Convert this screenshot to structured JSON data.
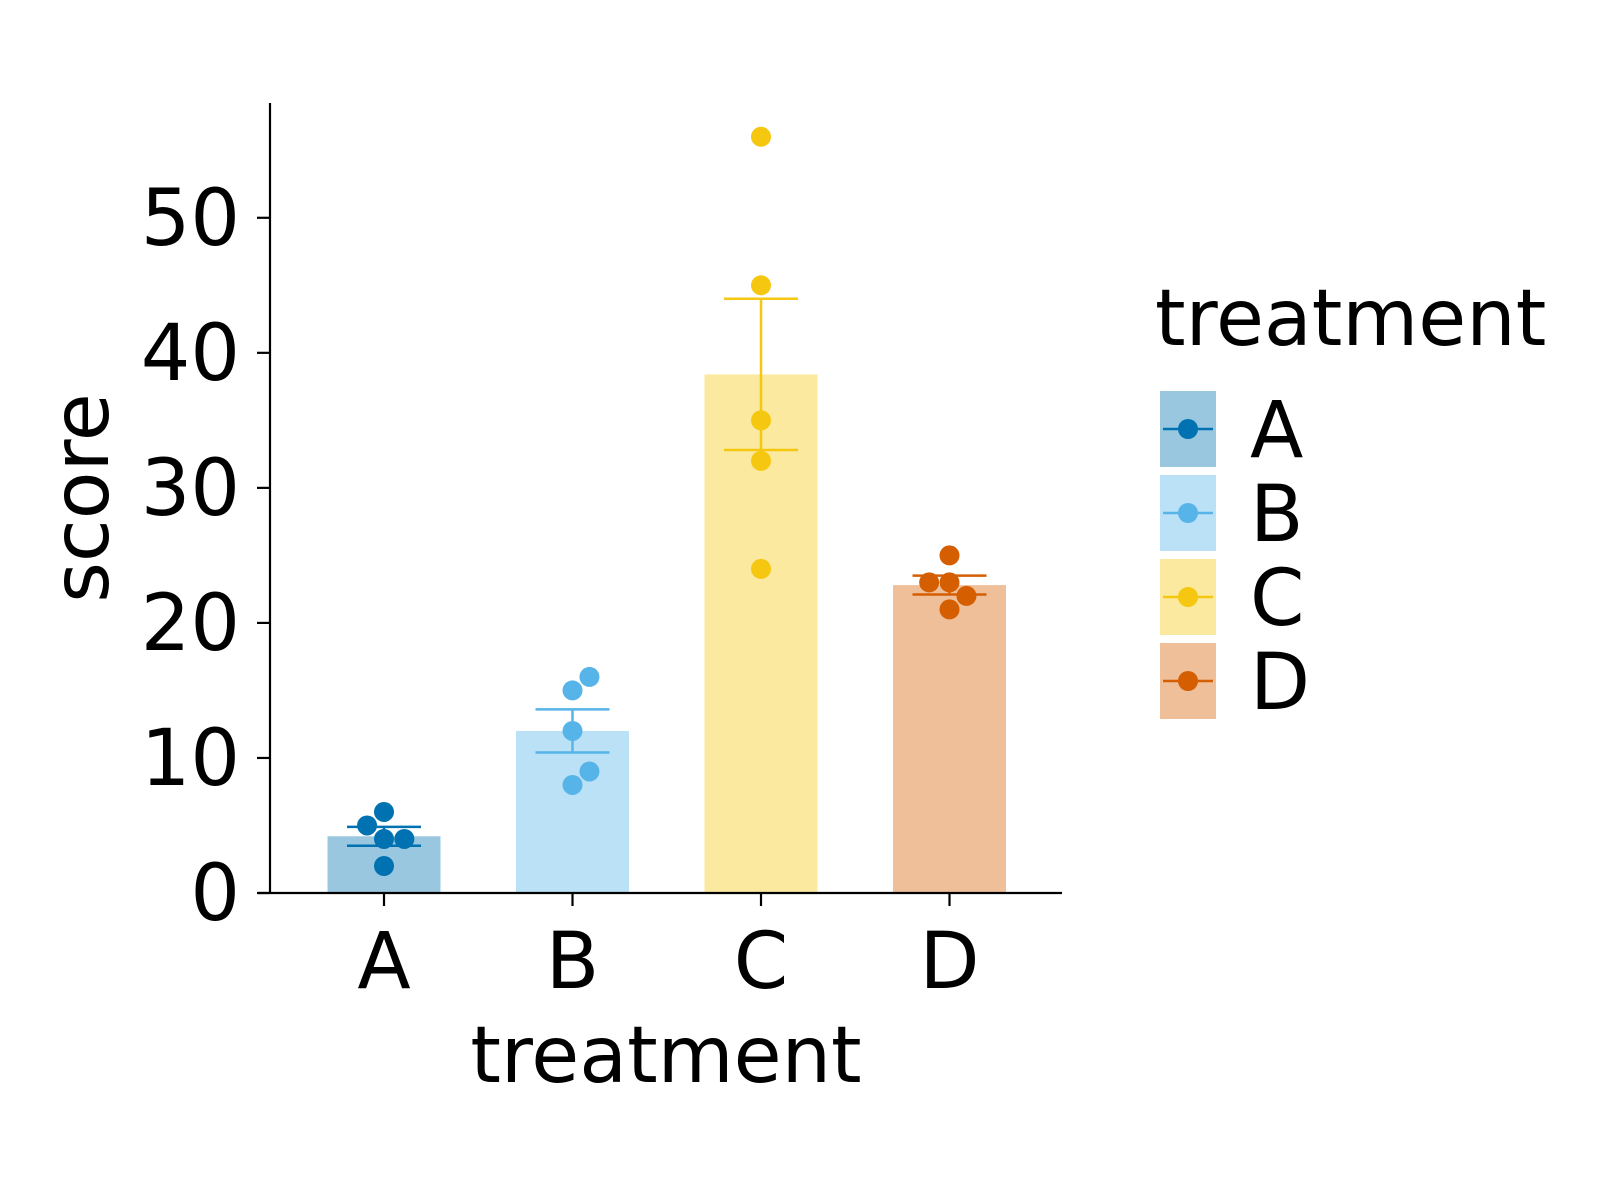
{
  "chart_data": {
    "type": "bar",
    "title": "",
    "xlabel": "treatment",
    "ylabel": "score",
    "ylim": [
      0,
      58.5
    ],
    "yticks": [
      0,
      10,
      20,
      30,
      40,
      50
    ],
    "grid": false,
    "legend": {
      "title": "treatment",
      "position": "right"
    },
    "categories": [
      "A",
      "B",
      "C",
      "D"
    ],
    "colors": {
      "A": "#0072B2",
      "B": "#56B4E9",
      "C": "#F5C710",
      "D": "#D55E00"
    },
    "series": [
      {
        "name": "A",
        "mean": 4.2,
        "error": [
          3.5,
          4.9
        ],
        "points": [
          {
            "offset": -0.1,
            "value": 5
          },
          {
            "offset": 0.0,
            "value": 6
          },
          {
            "offset": 0.0,
            "value": 4
          },
          {
            "offset": 0.12,
            "value": 4
          },
          {
            "offset": 0.0,
            "value": 2
          }
        ]
      },
      {
        "name": "B",
        "mean": 12.0,
        "error": [
          10.4,
          13.6
        ],
        "points": [
          {
            "offset": 0.1,
            "value": 16
          },
          {
            "offset": 0.0,
            "value": 15
          },
          {
            "offset": 0.0,
            "value": 12
          },
          {
            "offset": 0.1,
            "value": 9
          },
          {
            "offset": 0.0,
            "value": 8
          }
        ]
      },
      {
        "name": "C",
        "mean": 38.4,
        "error": [
          32.8,
          44.0
        ],
        "points": [
          {
            "offset": 0.0,
            "value": 56
          },
          {
            "offset": 0.0,
            "value": 45
          },
          {
            "offset": 0.0,
            "value": 35
          },
          {
            "offset": 0.0,
            "value": 32
          },
          {
            "offset": 0.0,
            "value": 24
          }
        ]
      },
      {
        "name": "D",
        "mean": 22.8,
        "error": [
          22.1,
          23.5
        ],
        "points": [
          {
            "offset": 0.0,
            "value": 25
          },
          {
            "offset": -0.12,
            "value": 23
          },
          {
            "offset": 0.0,
            "value": 23
          },
          {
            "offset": 0.1,
            "value": 22
          },
          {
            "offset": 0.0,
            "value": 21
          }
        ]
      }
    ]
  }
}
